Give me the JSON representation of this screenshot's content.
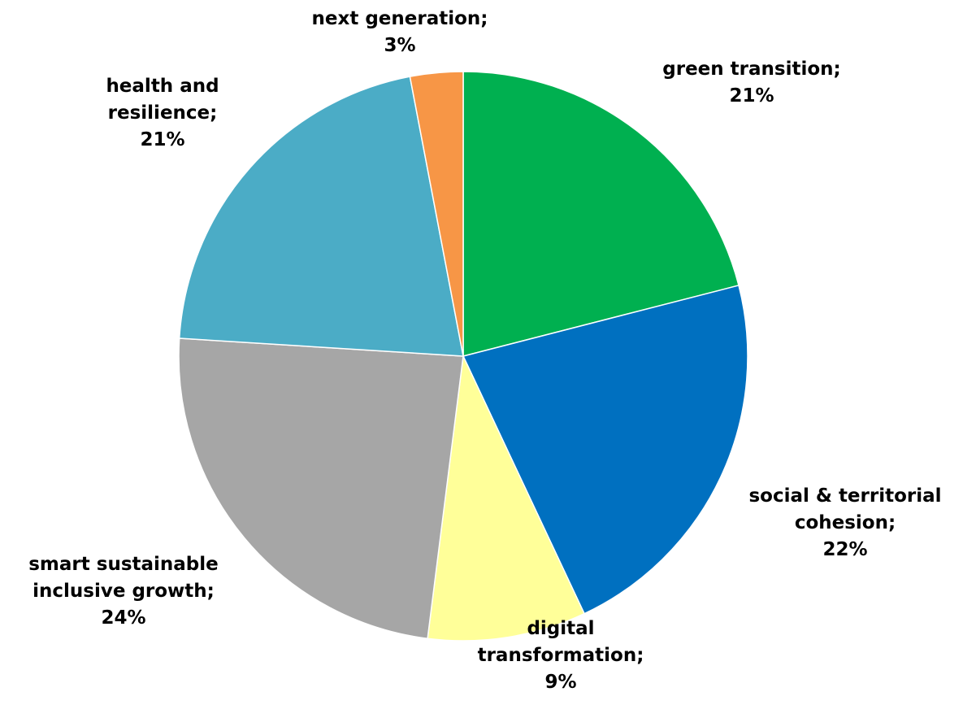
{
  "chart_data": {
    "type": "pie",
    "title": "",
    "legend": "none",
    "slices": [
      {
        "name": "green transition",
        "value": 21,
        "display": "21%",
        "label_lines": [
          "green transition;",
          "21%"
        ],
        "color": "#00B050"
      },
      {
        "name": "social & territorial cohesion",
        "value": 22,
        "display": "22%",
        "label_lines": [
          "social & territorial",
          "cohesion;",
          "22%"
        ],
        "color": "#0070C0"
      },
      {
        "name": "digital transformation",
        "value": 9,
        "display": "9%",
        "label_lines": [
          "digital",
          "transformation;",
          "9%"
        ],
        "color": "#FFFF99"
      },
      {
        "name": "smart sustainable inclusive growth",
        "value": 24,
        "display": "24%",
        "label_lines": [
          "smart sustainable",
          "inclusive growth;",
          "24%"
        ],
        "color": "#A6A6A6"
      },
      {
        "name": "health and resilience",
        "value": 21,
        "display": "21%",
        "label_lines": [
          "health and",
          "resilience;",
          "21%"
        ],
        "color": "#4BACC6"
      },
      {
        "name": "next generation",
        "value": 3,
        "display": "3%",
        "label_lines": [
          "next generation;",
          "3%"
        ],
        "color": "#F79646"
      }
    ]
  }
}
